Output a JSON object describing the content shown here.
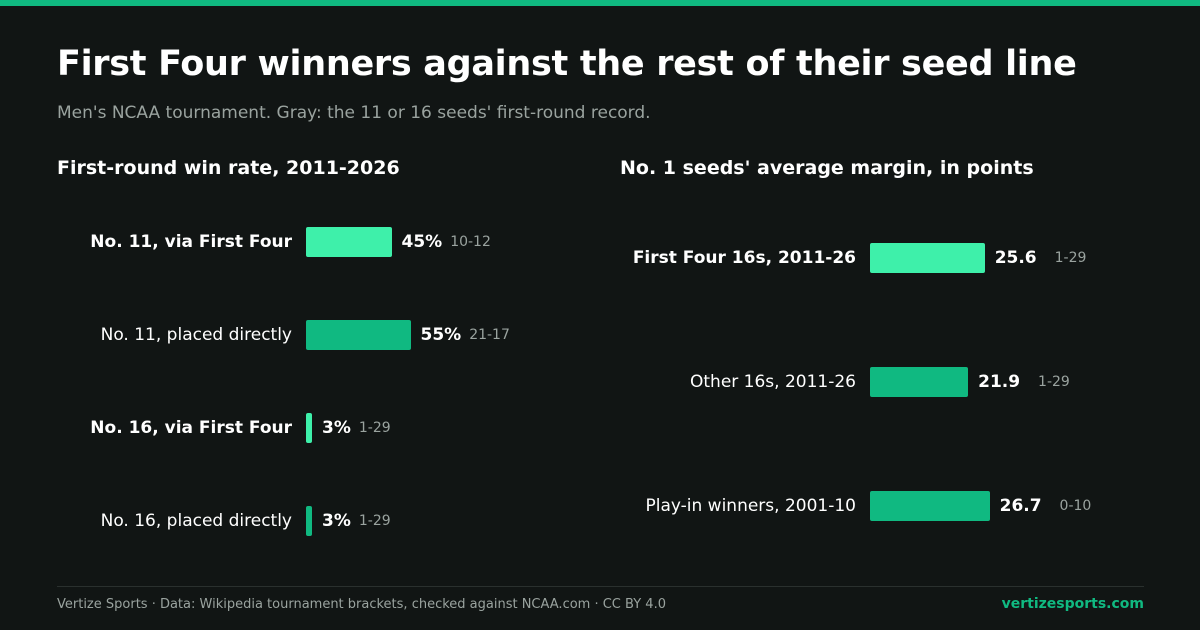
{
  "colors": {
    "accent": "#10b981",
    "accent_light": "#3ef0aa",
    "background": "#111514",
    "muted": "#9aa39f"
  },
  "header": {
    "title": "First Four winners against the rest of their seed line",
    "subtitle": "Men's NCAA tournament. Gray: the 11 or 16 seeds' first-round record."
  },
  "chart_data": [
    {
      "type": "bar",
      "orientation": "horizontal",
      "title": "First-round win rate, 2011-2026",
      "unit": "%",
      "categories": [
        "No. 11, via First Four",
        "No. 11, placed directly",
        "No. 16, via First Four",
        "No. 16, placed directly"
      ],
      "values": [
        45,
        55,
        3,
        3
      ],
      "value_labels": [
        "45%",
        "55%",
        "3%",
        "3%"
      ],
      "records": [
        "10-12",
        "21-17",
        "1-29",
        "1-29"
      ],
      "highlight": [
        true,
        false,
        true,
        false
      ]
    },
    {
      "type": "bar",
      "orientation": "horizontal",
      "title": "No. 1 seeds' average margin, in points",
      "categories": [
        "First Four 16s, 2011-26",
        "Other 16s, 2011-26",
        "Play-in winners, 2001-10"
      ],
      "values": [
        25.6,
        21.9,
        26.7
      ],
      "value_labels": [
        "25.6",
        "21.9",
        "26.7"
      ],
      "records": [
        "1-29",
        "1-29",
        "0-10"
      ],
      "highlight": [
        true,
        false,
        false
      ]
    }
  ],
  "footer": {
    "source": "Vertize Sports · Data: Wikipedia tournament brackets, checked against NCAA.com · CC BY 4.0",
    "site": "vertizesports.com"
  }
}
